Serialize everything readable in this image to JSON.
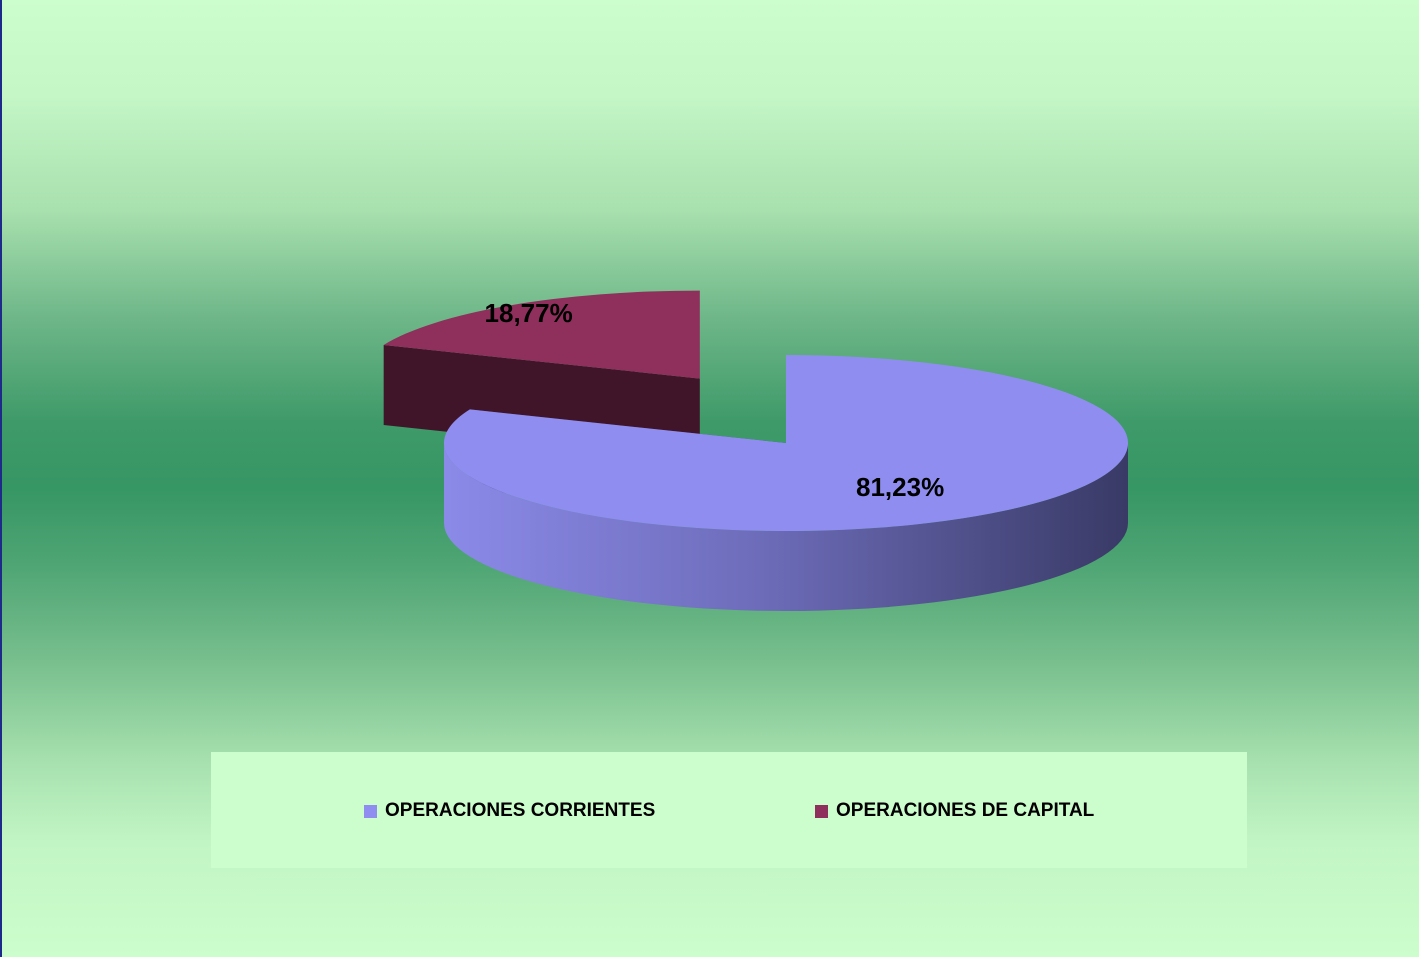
{
  "chart_data": {
    "type": "pie",
    "style": "3d-exploded",
    "categories": [
      "OPERACIONES CORRIENTES",
      "OPERACIONES DE CAPITAL"
    ],
    "values": [
      81.23,
      18.77
    ],
    "data_labels": [
      "81,23%",
      "18,77%"
    ],
    "colors": [
      "#8f8ef0",
      "#8e2f5c"
    ],
    "legend": "bottom"
  },
  "legend": {
    "items": [
      {
        "label": "OPERACIONES CORRIENTES",
        "color": "#8f8ef0"
      },
      {
        "label": "OPERACIONES DE CAPITAL",
        "color": "#8e2f5c"
      }
    ]
  }
}
